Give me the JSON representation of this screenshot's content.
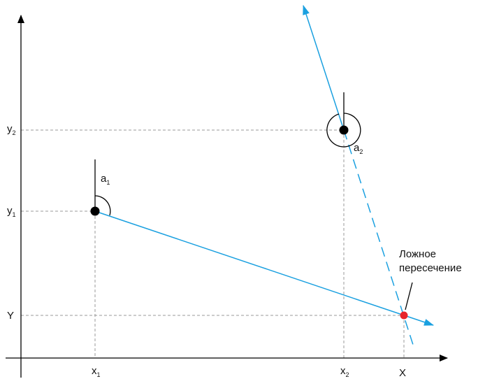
{
  "axes": {
    "x_tick_1": "x",
    "x_tick_1_sub": "1",
    "x_tick_2": "x",
    "x_tick_2_sub": "2",
    "x_tick_X": "X",
    "y_tick_1": "y",
    "y_tick_1_sub": "1",
    "y_tick_2": "y",
    "y_tick_2_sub": "2",
    "y_tick_Y": "Y"
  },
  "angles": {
    "a1": "a",
    "a1_sub": "1",
    "a2": "a",
    "a2_sub": "2"
  },
  "annotation": {
    "line1": "Ложное",
    "line2": "пересечение"
  },
  "colors": {
    "bearing": "#1aa0e0",
    "intersection": "#e8252b",
    "point": "#000000",
    "guide": "#999999"
  }
}
